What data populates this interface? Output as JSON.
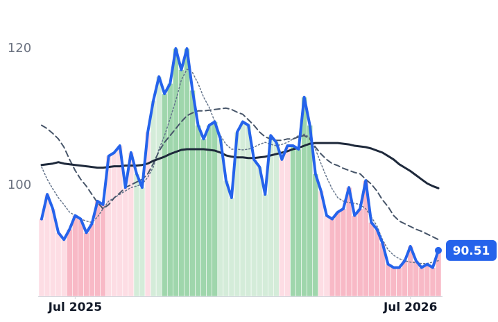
{
  "chart_data": {
    "type": "line",
    "categories": [
      null,
      null,
      null,
      null,
      null,
      null,
      "Jul 2025",
      null,
      null,
      null,
      null,
      null,
      null,
      null,
      null,
      null,
      null,
      null,
      null,
      null,
      null,
      null,
      null,
      null,
      null,
      null,
      null,
      null,
      null,
      null,
      null,
      null,
      null,
      null,
      null,
      null,
      null,
      null,
      null,
      null,
      null,
      null,
      null,
      null,
      null,
      null,
      null,
      null,
      null,
      null,
      null,
      null,
      null,
      null,
      null,
      null,
      null,
      null,
      null,
      null,
      null,
      null,
      null,
      null,
      null,
      null,
      "Jul 2026",
      null,
      null,
      null,
      null,
      null
    ],
    "ylim": [
      83.8,
      127.1
    ],
    "yticks": [
      100,
      120
    ],
    "band_colors": [
      "#fddde4",
      "#fddde4",
      "#fddde4",
      "#fddde4",
      "#fddde4",
      "#f8b9c6",
      "#f8b9c6",
      "#f8b9c6",
      "#f8b9c6",
      "#f8b9c6",
      "#f8b9c6",
      "#f8b9c6",
      "#fddde4",
      "#fddde4",
      "#fddde4",
      "#fddde4",
      "#fddde4",
      "#d4ecd9",
      "#d4ecd9",
      "#fddde4",
      "#d4ecd9",
      "#d4ecd9",
      "#9fd6ac",
      "#9fd6ac",
      "#9fd6ac",
      "#9fd6ac",
      "#9fd6ac",
      "#9fd6ac",
      "#9fd6ac",
      "#9fd6ac",
      "#9fd6ac",
      "#9fd6ac",
      "#d4ecd9",
      "#d4ecd9",
      "#d4ecd9",
      "#d4ecd9",
      "#d4ecd9",
      "#d4ecd9",
      "#d4ecd9",
      "#d4ecd9",
      "#d4ecd9",
      "#d4ecd9",
      "#d4ecd9",
      "#fddde4",
      "#fddde4",
      "#9fd6ac",
      "#9fd6ac",
      "#9fd6ac",
      "#9fd6ac",
      "#9fd6ac",
      "#fddde4",
      "#fddde4",
      "#f8b9c6",
      "#f8b9c6",
      "#f8b9c6",
      "#f8b9c6",
      "#f8b9c6",
      "#f8b9c6",
      "#f8b9c6",
      "#f8b9c6",
      "#f8b9c6",
      "#f8b9c6",
      "#f8b9c6",
      "#f8b9c6",
      "#f8b9c6",
      "#f8b9c6",
      "#f8b9c6",
      "#f8b9c6",
      "#f8b9c6",
      "#f8b9c6",
      "#f8b9c6",
      "#f8b9c6"
    ],
    "series": [
      {
        "color": "#2563eb",
        "width": 4,
        "line_style": "solid",
        "values": [
          95.1,
          98.7,
          96.6,
          93.1,
          92.1,
          93.6,
          95.6,
          95.1,
          93.1,
          94.4,
          97.7,
          97.2,
          104.3,
          104.8,
          105.8,
          99.7,
          104.8,
          101.7,
          99.7,
          107.8,
          112.4,
          115.9,
          113.4,
          114.9,
          120.0,
          116.9,
          120.0,
          113.9,
          108.8,
          106.8,
          108.8,
          109.3,
          106.8,
          100.7,
          98.2,
          107.8,
          109.3,
          108.8,
          103.8,
          102.7,
          98.7,
          107.3,
          106.3,
          103.8,
          105.8,
          105.8,
          105.3,
          112.9,
          108.8,
          101.7,
          99.2,
          95.6,
          95.1,
          96.1,
          96.6,
          99.7,
          95.6,
          96.6,
          100.7,
          94.6,
          93.6,
          91.6,
          88.5,
          88.0,
          88.0,
          89.0,
          91.1,
          89.0,
          88.0,
          88.5,
          88.0,
          90.51
        ]
      },
      {
        "color": "#1e293b",
        "width": 3,
        "line_style": "solid",
        "values": [
          103.0,
          103.1,
          103.2,
          103.4,
          103.2,
          103.1,
          103.0,
          102.9,
          102.8,
          102.7,
          102.6,
          102.6,
          102.7,
          102.8,
          102.8,
          102.9,
          102.9,
          102.9,
          103.0,
          103.2,
          103.6,
          103.9,
          104.2,
          104.6,
          104.9,
          105.2,
          105.3,
          105.3,
          105.3,
          105.3,
          105.2,
          105.1,
          104.8,
          104.4,
          104.2,
          104.1,
          104.1,
          104.0,
          104.0,
          104.1,
          104.2,
          104.4,
          104.6,
          104.8,
          105.0,
          105.3,
          105.5,
          105.8,
          106.1,
          106.2,
          106.2,
          106.2,
          106.2,
          106.2,
          106.1,
          106.0,
          105.8,
          105.7,
          105.6,
          105.4,
          105.1,
          104.8,
          104.3,
          103.8,
          103.1,
          102.6,
          102.1,
          101.5,
          100.9,
          100.3,
          99.9,
          99.6
        ]
      },
      {
        "color": "#475569",
        "width": 2,
        "line_style": "dashed",
        "values": [
          108.8,
          108.3,
          107.6,
          106.8,
          105.6,
          103.8,
          102.2,
          100.9,
          99.9,
          98.7,
          97.5,
          96.6,
          97.2,
          98.2,
          98.9,
          99.7,
          100.1,
          100.5,
          100.9,
          101.7,
          103.2,
          105.0,
          106.3,
          107.3,
          108.3,
          109.3,
          110.2,
          110.6,
          110.9,
          110.9,
          111.0,
          111.1,
          111.2,
          111.3,
          111.1,
          110.7,
          110.4,
          109.6,
          108.8,
          107.8,
          107.1,
          106.8,
          106.6,
          106.6,
          106.8,
          106.8,
          107.1,
          107.3,
          106.8,
          105.6,
          104.6,
          103.8,
          103.2,
          102.9,
          102.5,
          102.2,
          101.9,
          101.7,
          100.9,
          100.2,
          99.2,
          97.9,
          96.9,
          95.6,
          94.8,
          94.4,
          94.0,
          93.6,
          93.3,
          92.9,
          92.5,
          92.1
        ]
      },
      {
        "color": "#64748b",
        "width": 1.5,
        "line_style": "dotted",
        "values": [
          102.7,
          100.9,
          99.5,
          98.2,
          97.2,
          96.1,
          95.6,
          95.1,
          94.8,
          94.6,
          95.4,
          96.6,
          97.7,
          98.2,
          98.7,
          99.2,
          99.7,
          99.9,
          100.2,
          101.2,
          102.7,
          105.3,
          107.3,
          109.8,
          112.4,
          115.4,
          117.0,
          116.5,
          114.9,
          112.9,
          111.4,
          109.3,
          107.3,
          106.0,
          105.3,
          105.3,
          105.2,
          105.3,
          105.6,
          106.0,
          106.3,
          106.0,
          105.8,
          106.0,
          106.3,
          106.8,
          107.3,
          107.5,
          107.0,
          105.3,
          103.2,
          101.2,
          99.5,
          98.2,
          97.7,
          97.5,
          97.4,
          97.2,
          96.6,
          95.4,
          94.1,
          92.1,
          90.6,
          89.8,
          89.3,
          89.0,
          88.8,
          88.7,
          88.6,
          88.6,
          88.8,
          89.0
        ]
      }
    ]
  }
}
